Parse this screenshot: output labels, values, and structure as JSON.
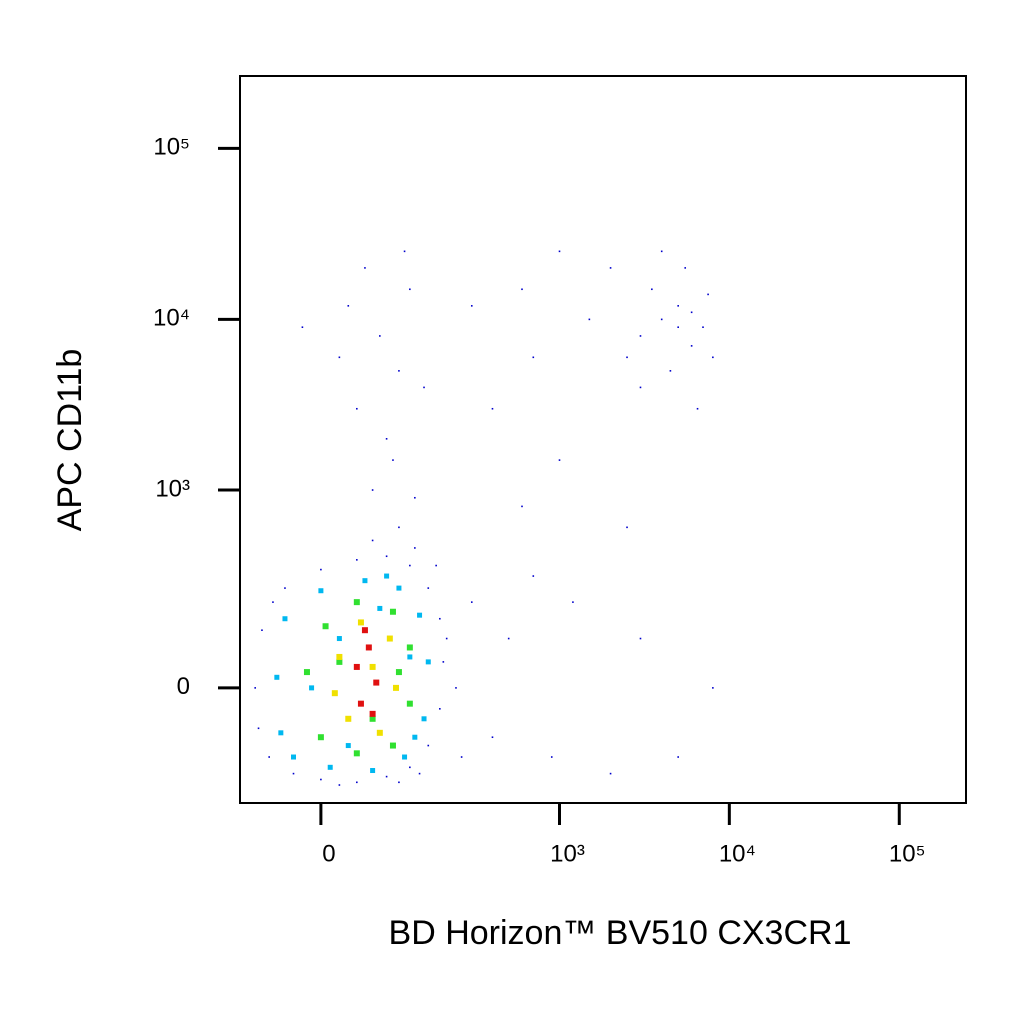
{
  "chart_data": {
    "type": "scatter",
    "x_label": "BD Horizon™ BV510 CX3CR1",
    "y_label": "APC CD11b",
    "x_scale": "biexponential",
    "y_scale": "biexponential",
    "xlim": [
      -105,
      247000
    ],
    "ylim": [
      -315,
      265000
    ],
    "xticks": [
      0,
      {
        "value": 1000,
        "label": "10³"
      },
      {
        "value": 10000,
        "label": "10⁴"
      },
      {
        "value": 100000,
        "label": "10⁵"
      }
    ],
    "yticks": [
      0,
      {
        "value": 1000,
        "label": "10³"
      },
      {
        "value": 10000,
        "label": "10⁴"
      },
      {
        "value": 100000,
        "label": "10⁵"
      }
    ],
    "series": [
      {
        "color": "#0000cc",
        "size": 1.6,
        "x": [
          -60,
          -30,
          0,
          40,
          80,
          120,
          160,
          190,
          200,
          190,
          160,
          120,
          80,
          40,
          0,
          -40,
          -70,
          -80,
          -75,
          100,
          20,
          140,
          210,
          -55,
          60,
          100,
          130,
          180,
          240,
          260,
          60,
          80,
          40,
          100,
          70,
          30,
          120,
          50,
          90,
          150,
          20,
          110,
          -20,
          130,
          300,
          400,
          500,
          700,
          900,
          1200,
          2000,
          3000,
          5000,
          8000,
          600,
          1000,
          2500,
          400,
          700,
          1500,
          2000,
          600,
          300,
          1000,
          3000,
          4000,
          5000,
          6000,
          4500,
          3500,
          7000,
          5500,
          2500,
          6500,
          4000,
          7500,
          3000,
          5000,
          6000,
          8000
        ],
        "values": [
          -150,
          -200,
          -220,
          -230,
          -210,
          -180,
          -120,
          -40,
          50,
          150,
          250,
          350,
          400,
          380,
          330,
          250,
          120,
          0,
          -80,
          -230,
          -240,
          -200,
          100,
          200,
          500,
          600,
          450,
          350,
          0,
          -150,
          1000,
          2000,
          3000,
          5000,
          8000,
          12000,
          15000,
          20000,
          1500,
          4000,
          6000,
          25000,
          9000,
          900,
          200,
          -100,
          100,
          300,
          -150,
          200,
          -200,
          100,
          -150,
          0,
          800,
          1500,
          600,
          3000,
          6000,
          10000,
          20000,
          15000,
          12000,
          25000,
          8000,
          10000,
          12000,
          7000,
          5000,
          15000,
          9000,
          20000,
          6000,
          3000,
          25000,
          14000,
          4000,
          9000,
          11000,
          6000
        ]
      },
      {
        "color": "#00b8f0",
        "size": 5,
        "x": [
          -30,
          10,
          60,
          110,
          150,
          160,
          140,
          100,
          50,
          0,
          -40,
          -50,
          -45,
          30,
          130,
          80,
          20,
          120,
          -10,
          70
        ],
        "values": [
          -150,
          -180,
          -190,
          -150,
          -60,
          50,
          160,
          250,
          280,
          240,
          150,
          20,
          -90,
          -120,
          -100,
          300,
          100,
          60,
          0,
          180
        ]
      },
      {
        "color": "#30e030",
        "size": 6,
        "x": [
          0,
          40,
          90,
          120,
          120,
          90,
          40,
          5,
          -15,
          60,
          20,
          100
        ],
        "values": [
          -100,
          -140,
          -120,
          -30,
          80,
          170,
          200,
          130,
          30,
          -60,
          50,
          30
        ]
      },
      {
        "color": "#f0e000",
        "size": 6,
        "x": [
          30,
          70,
          95,
          85,
          45,
          20,
          15,
          60
        ],
        "values": [
          -60,
          -90,
          0,
          100,
          140,
          60,
          -10,
          40
        ]
      },
      {
        "color": "#e01010",
        "size": 6,
        "x": [
          45,
          65,
          55,
          40,
          60,
          50
        ],
        "values": [
          -30,
          10,
          80,
          40,
          -50,
          120
        ]
      }
    ]
  }
}
